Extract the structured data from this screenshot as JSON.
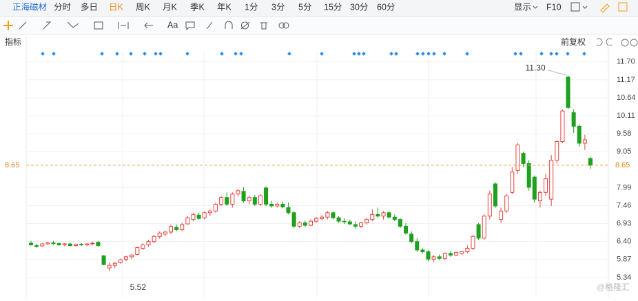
{
  "toolbar": {
    "stock": "正海磁材",
    "periods": [
      "分时",
      "多日",
      "日K",
      "周K",
      "月K",
      "季K",
      "年K",
      "1分",
      "3分",
      "5分",
      "15分",
      "30分",
      "60分"
    ],
    "active": "日K",
    "display": "显示",
    "f10": "F10",
    "font_tool": "Aa"
  },
  "indicator_label": "指标",
  "adjust_label": "前复权",
  "watermark": "@格隆汇",
  "chart_data": {
    "type": "candlestick",
    "up_color": "#e8413f",
    "down_color": "#1ea11e",
    "ylim": [
      4.89,
      12.0
    ],
    "yticks": [
      {
        "value": 11.7,
        "label": "11.70"
      },
      11.17,
      10.64,
      10.11,
      9.58,
      9.05,
      7.99,
      7.46,
      6.93,
      {
        "value": 6.4,
        "label": "6.40"
      },
      5.87,
      5.34
    ],
    "grid": true,
    "last_price": {
      "value": 8.65,
      "label": "8.65"
    },
    "annotations": {
      "max_label": "11.30",
      "min_label": "5.52"
    },
    "ohlc": [
      [
        6.35,
        6.42,
        6.28,
        6.3
      ],
      [
        6.28,
        6.33,
        6.22,
        6.25
      ],
      [
        6.27,
        6.35,
        6.25,
        6.33
      ],
      [
        6.33,
        6.4,
        6.3,
        6.36
      ],
      [
        6.36,
        6.42,
        6.3,
        6.34
      ],
      [
        6.34,
        6.38,
        6.28,
        6.3
      ],
      [
        6.3,
        6.36,
        6.26,
        6.33
      ],
      [
        6.33,
        6.37,
        6.26,
        6.28
      ],
      [
        6.28,
        6.34,
        6.25,
        6.32
      ],
      [
        6.32,
        6.36,
        6.27,
        6.3
      ],
      [
        6.3,
        6.35,
        6.26,
        6.33
      ],
      [
        6.33,
        6.4,
        6.3,
        6.35
      ],
      [
        6.38,
        6.42,
        6.25,
        6.28
      ],
      [
        5.98,
        6.0,
        5.7,
        5.72
      ],
      [
        5.62,
        5.78,
        5.52,
        5.7
      ],
      [
        5.7,
        5.8,
        5.62,
        5.76
      ],
      [
        5.78,
        5.9,
        5.74,
        5.86
      ],
      [
        5.88,
        5.98,
        5.82,
        5.95
      ],
      [
        5.95,
        6.05,
        5.88,
        6.0
      ],
      [
        6.02,
        6.25,
        6.0,
        6.22
      ],
      [
        6.2,
        6.35,
        6.15,
        6.3
      ],
      [
        6.3,
        6.45,
        6.25,
        6.4
      ],
      [
        6.4,
        6.6,
        6.35,
        6.55
      ],
      [
        6.55,
        6.7,
        6.48,
        6.65
      ],
      [
        6.62,
        6.72,
        6.55,
        6.68
      ],
      [
        6.68,
        6.9,
        6.62,
        6.85
      ],
      [
        6.82,
        6.9,
        6.7,
        6.75
      ],
      [
        6.75,
        6.95,
        6.7,
        6.9
      ],
      [
        6.92,
        7.15,
        6.9,
        7.1
      ],
      [
        7.05,
        7.25,
        7.0,
        7.2
      ],
      [
        7.18,
        7.25,
        7.05,
        7.08
      ],
      [
        7.1,
        7.3,
        7.05,
        7.25
      ],
      [
        7.25,
        7.35,
        7.15,
        7.3
      ],
      [
        7.3,
        7.55,
        7.25,
        7.5
      ],
      [
        7.5,
        7.75,
        7.45,
        7.7
      ],
      [
        7.7,
        7.85,
        7.45,
        7.5
      ],
      [
        7.5,
        7.85,
        7.4,
        7.8
      ],
      [
        7.8,
        7.95,
        7.72,
        7.9
      ],
      [
        7.88,
        8.0,
        7.55,
        7.6
      ],
      [
        7.6,
        7.75,
        7.5,
        7.7
      ],
      [
        7.7,
        7.78,
        7.45,
        7.5
      ],
      [
        7.5,
        7.8,
        7.45,
        7.75
      ],
      [
        7.98,
        8.02,
        7.45,
        7.5
      ],
      [
        7.5,
        7.6,
        7.4,
        7.45
      ],
      [
        7.45,
        7.55,
        7.4,
        7.5
      ],
      [
        7.5,
        7.58,
        7.38,
        7.42
      ],
      [
        7.4,
        7.55,
        7.2,
        7.25
      ],
      [
        7.25,
        7.3,
        6.8,
        6.85
      ],
      [
        6.85,
        7.0,
        6.8,
        6.95
      ],
      [
        6.95,
        7.02,
        6.82,
        6.88
      ],
      [
        6.88,
        7.05,
        6.85,
        7.0
      ],
      [
        7.0,
        7.12,
        6.95,
        7.08
      ],
      [
        7.08,
        7.18,
        7.02,
        7.12
      ],
      [
        7.12,
        7.3,
        7.05,
        7.25
      ],
      [
        7.25,
        7.3,
        7.05,
        7.1
      ],
      [
        7.1,
        7.15,
        6.95,
        7.0
      ],
      [
        7.0,
        7.08,
        6.92,
        6.98
      ],
      [
        6.98,
        7.05,
        6.88,
        6.92
      ],
      [
        6.9,
        7.0,
        6.78,
        6.85
      ],
      [
        6.85,
        6.98,
        6.8,
        6.95
      ],
      [
        6.95,
        7.1,
        6.9,
        7.05
      ],
      [
        7.05,
        7.35,
        7.0,
        7.2
      ],
      [
        7.2,
        7.4,
        7.1,
        7.15
      ],
      [
        7.15,
        7.3,
        7.05,
        7.25
      ],
      [
        7.25,
        7.3,
        7.08,
        7.12
      ],
      [
        7.12,
        7.2,
        7.0,
        7.05
      ],
      [
        7.05,
        7.1,
        6.8,
        6.85
      ],
      [
        6.85,
        6.95,
        6.6,
        6.65
      ],
      [
        6.62,
        6.7,
        6.35,
        6.4
      ],
      [
        6.4,
        6.5,
        6.1,
        6.15
      ],
      [
        6.15,
        6.2,
        6.05,
        6.1
      ],
      [
        6.1,
        6.15,
        5.82,
        5.88
      ],
      [
        5.88,
        6.0,
        5.8,
        5.95
      ],
      [
        5.95,
        6.02,
        5.85,
        5.9
      ],
      [
        5.9,
        6.08,
        5.85,
        6.05
      ],
      [
        6.05,
        6.12,
        5.95,
        6.0
      ],
      [
        6.0,
        6.1,
        5.98,
        6.08
      ],
      [
        6.05,
        6.12,
        6.0,
        6.1
      ],
      [
        6.1,
        6.28,
        6.05,
        6.2
      ],
      [
        6.2,
        6.6,
        6.15,
        6.55
      ],
      [
        6.9,
        6.95,
        6.45,
        6.5
      ],
      [
        6.5,
        7.2,
        6.45,
        7.15
      ],
      [
        7.15,
        7.9,
        7.05,
        7.8
      ],
      [
        8.1,
        8.15,
        7.4,
        7.45
      ],
      [
        7.05,
        7.4,
        6.95,
        7.3
      ],
      [
        7.3,
        7.8,
        7.25,
        7.75
      ],
      [
        7.85,
        8.6,
        7.8,
        8.45
      ],
      [
        8.5,
        9.3,
        8.4,
        9.25
      ],
      [
        9.0,
        9.05,
        8.6,
        8.7
      ],
      [
        8.7,
        8.8,
        7.9,
        8.0
      ],
      [
        8.3,
        8.35,
        7.55,
        7.65
      ],
      [
        7.6,
        7.9,
        7.4,
        7.85
      ],
      [
        7.85,
        8.4,
        7.75,
        8.25
      ],
      [
        7.65,
        8.95,
        7.45,
        8.8
      ],
      [
        8.8,
        9.4,
        8.7,
        9.35
      ],
      [
        9.35,
        10.3,
        9.3,
        10.25
      ],
      [
        11.25,
        11.3,
        10.3,
        10.35
      ],
      [
        10.2,
        10.3,
        9.6,
        9.8
      ],
      [
        9.8,
        9.85,
        9.2,
        9.3
      ],
      [
        9.3,
        9.55,
        9.1,
        9.4
      ],
      [
        8.85,
        8.9,
        8.55,
        8.65
      ]
    ]
  }
}
